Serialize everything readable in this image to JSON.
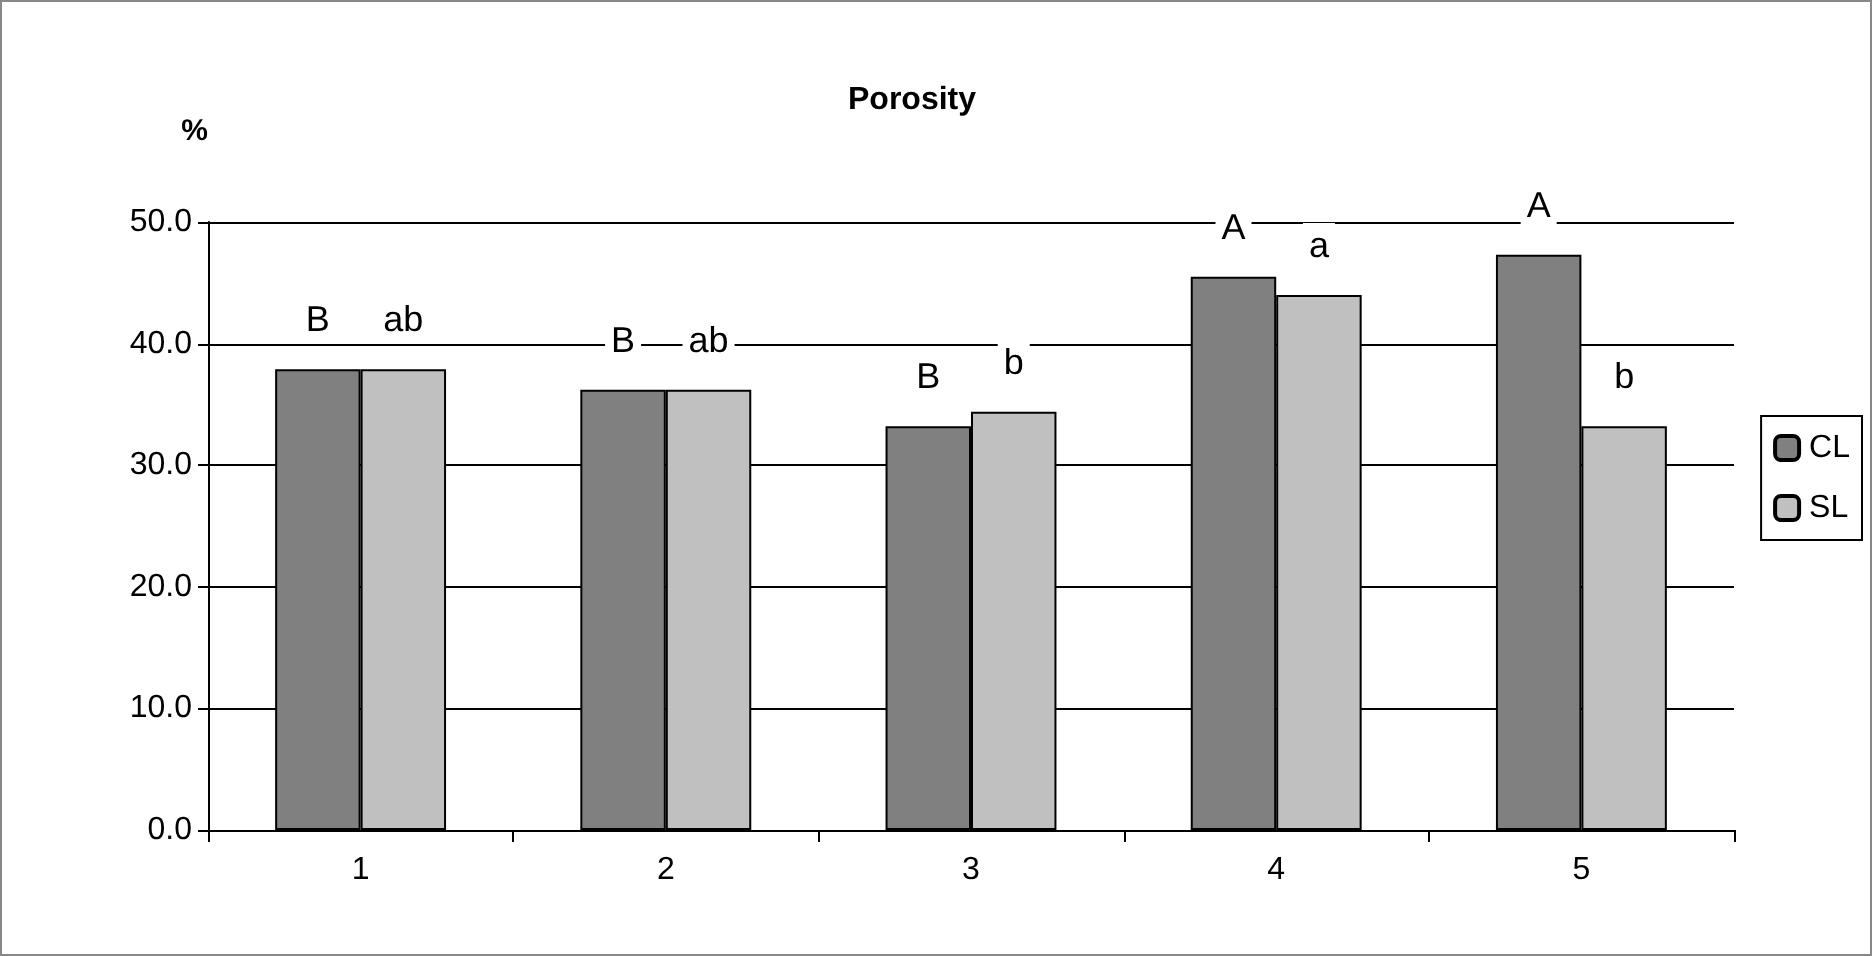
{
  "chart_data": {
    "type": "bar",
    "title": "Porosity",
    "ylabel": "%",
    "categories": [
      "1",
      "2",
      "3",
      "4",
      "5"
    ],
    "series": [
      {
        "name": "CL",
        "color": "#808080",
        "values": [
          37.9,
          36.2,
          33.2,
          45.5,
          47.3
        ],
        "value_labels": [
          "B",
          "B",
          "B",
          "A",
          "A"
        ]
      },
      {
        "name": "SL",
        "color": "#c0c0c0",
        "values": [
          37.9,
          36.2,
          34.4,
          44.0,
          33.2
        ],
        "value_labels": [
          "ab",
          "ab",
          "b",
          "a",
          "b"
        ]
      }
    ],
    "ylim": [
      0,
      50
    ],
    "yticks": [
      {
        "value": 0,
        "label": "0.0"
      },
      {
        "value": 10,
        "label": "10.0"
      },
      {
        "value": 20,
        "label": "20.0"
      },
      {
        "value": 30,
        "label": "30.0"
      },
      {
        "value": 40,
        "label": "40.0"
      },
      {
        "value": 50,
        "label": "50.0"
      }
    ],
    "grid": "y",
    "legend": "right"
  }
}
